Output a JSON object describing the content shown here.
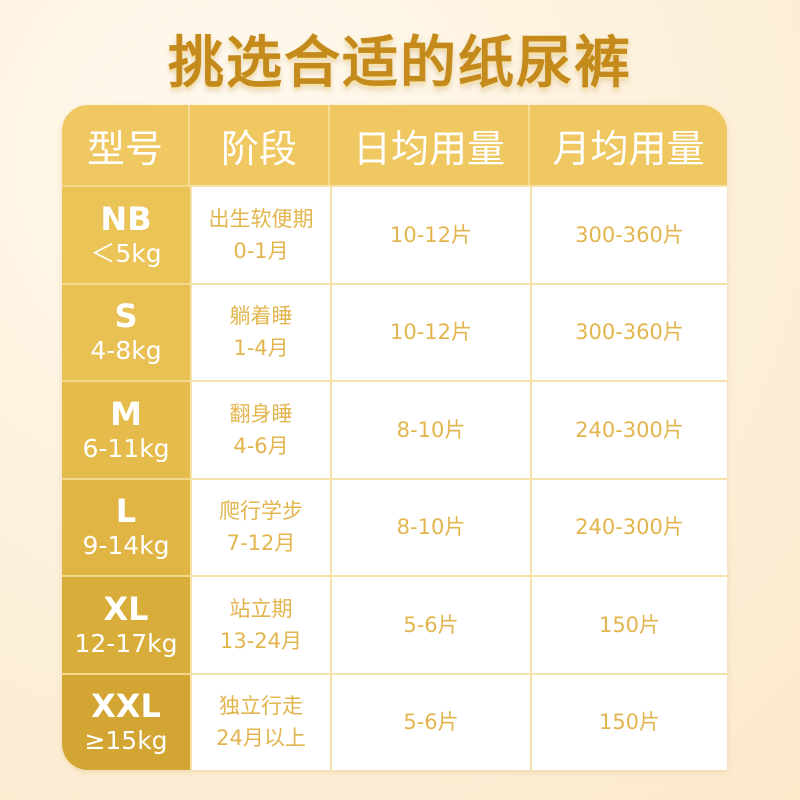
{
  "title": "挑选合适的纸尿裤",
  "headers": [
    "型号",
    "阶段",
    "日均用量",
    "月均用量"
  ],
  "rows": [
    {
      "size": "NB",
      "weight": "＜5kg",
      "stage": "出生软便期",
      "age": "0-1月",
      "daily": "10-12片",
      "monthly": "300-360片"
    },
    {
      "size": "S",
      "weight": "4-8kg",
      "stage": "躺着睡",
      "age": "1-4月",
      "daily": "10-12片",
      "monthly": "300-360片"
    },
    {
      "size": "M",
      "weight": "6-11kg",
      "stage": "翻身睡",
      "age": "4-6月",
      "daily": "8-10片",
      "monthly": "240-300片"
    },
    {
      "size": "L",
      "weight": "9-14kg",
      "stage": "爬行学步",
      "age": "7-12月",
      "daily": "8-10片",
      "monthly": "240-300片"
    },
    {
      "size": "XL",
      "weight": "12-17kg",
      "stage": "站立期",
      "age": "13-24月",
      "daily": "5-6片",
      "monthly": "150片"
    },
    {
      "size": "XXL",
      "weight": "≥15kg",
      "stage": "独立行走",
      "age": "24月以上",
      "daily": "5-6片",
      "monthly": "150片"
    }
  ],
  "colors": {
    "header": "#efc861",
    "text": "#e3b54e",
    "title": "#c58a1c"
  }
}
